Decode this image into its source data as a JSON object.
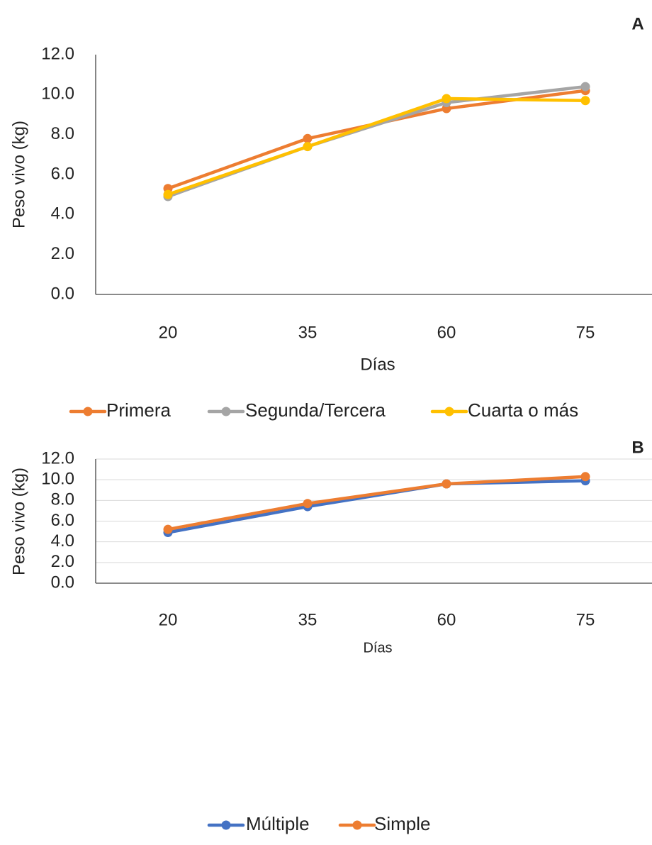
{
  "chart_data": [
    {
      "type": "line",
      "panel_label": "A",
      "categories": [
        "20",
        "35",
        "60",
        "75"
      ],
      "series": [
        {
          "name": "Primera",
          "color": "#ED7D31",
          "values": [
            5.3,
            7.8,
            9.3,
            10.2
          ]
        },
        {
          "name": "Segunda/Tercera",
          "color": "#A5A5A5",
          "values": [
            4.9,
            7.4,
            9.6,
            10.4
          ]
        },
        {
          "name": "Cuarta o más",
          "color": "#FFC000",
          "values": [
            5.0,
            7.4,
            9.8,
            9.7
          ]
        }
      ],
      "xlabel": "Días",
      "ylabel": "Peso vivo (kg)",
      "ylim": [
        0,
        12
      ],
      "yticks": [
        "0.0",
        "2.0",
        "4.0",
        "6.0",
        "8.0",
        "10.0",
        "12.0"
      ],
      "grid": false,
      "legend": "bottom"
    },
    {
      "type": "line",
      "panel_label": "B",
      "categories": [
        "20",
        "35",
        "60",
        "75"
      ],
      "series": [
        {
          "name": "Múltiple",
          "color": "#4472C4",
          "values": [
            4.9,
            7.4,
            9.6,
            9.9
          ]
        },
        {
          "name": "Simple",
          "color": "#ED7D31",
          "values": [
            5.2,
            7.7,
            9.6,
            10.3
          ]
        }
      ],
      "xlabel": "Días",
      "ylabel": "Peso vivo (kg)",
      "ylim": [
        0,
        12
      ],
      "yticks": [
        "0.0",
        "2.0",
        "4.0",
        "6.0",
        "8.0",
        "10.0",
        "12.0"
      ],
      "grid": true,
      "legend": "bottom"
    }
  ]
}
